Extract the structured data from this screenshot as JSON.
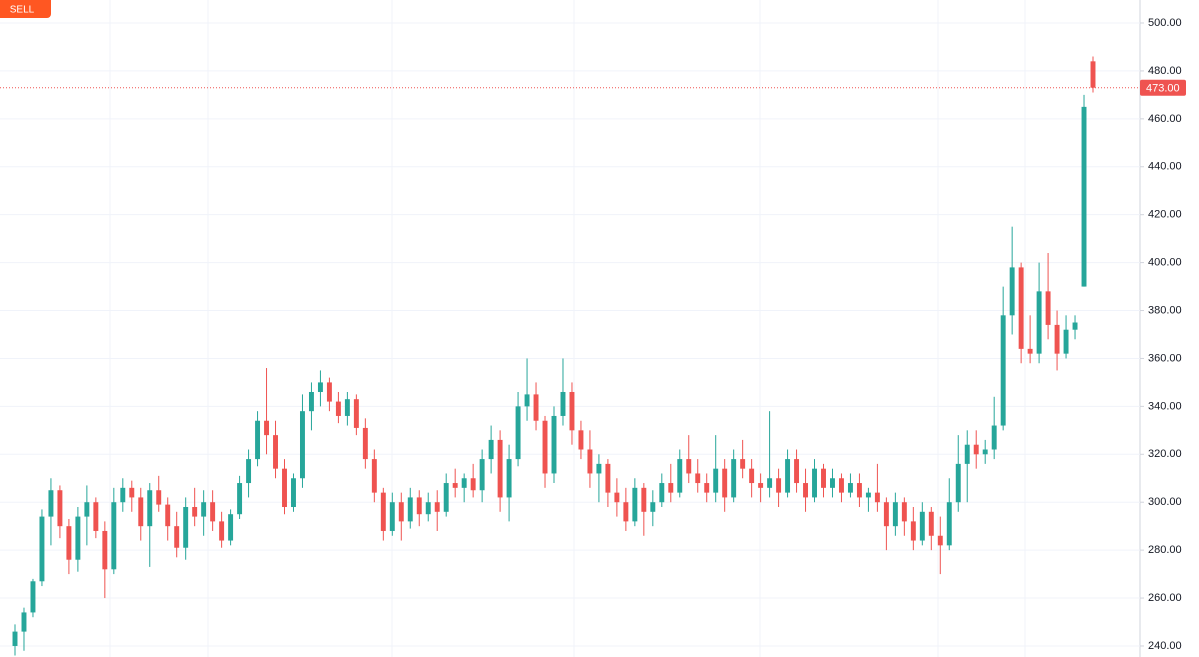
{
  "chart_data": {
    "type": "candlestick",
    "button": "SELL",
    "up_color": "#26a69a",
    "down_color": "#ef5350",
    "ylim": [
      235.4,
      509.6
    ],
    "yticks": [
      {
        "value": 240,
        "label": "240.00"
      },
      {
        "value": 260,
        "label": "260.00"
      },
      {
        "value": 280,
        "label": "280.00"
      },
      {
        "value": 300,
        "label": "300.00"
      },
      {
        "value": 320,
        "label": "320.00"
      },
      {
        "value": 340,
        "label": "340.00"
      },
      {
        "value": 360,
        "label": "360.00"
      },
      {
        "value": 380,
        "label": "380.00"
      },
      {
        "value": 400,
        "label": "400.00"
      },
      {
        "value": 420,
        "label": "420.00"
      },
      {
        "value": 440,
        "label": "440.00"
      },
      {
        "value": 460,
        "label": "460.00"
      },
      {
        "value": 480,
        "label": "480.00"
      },
      {
        "value": 500,
        "label": "500.00"
      }
    ],
    "grid": true,
    "last_price": {
      "value": 473,
      "label": "473.00"
    },
    "open": [
      240,
      246,
      254,
      267,
      294,
      305,
      290,
      276,
      294,
      300,
      288,
      272,
      300,
      306,
      302,
      290,
      305,
      299,
      290,
      281,
      298,
      294,
      300,
      292,
      284,
      295,
      308,
      318,
      334,
      328,
      314,
      298,
      310,
      338,
      346,
      350,
      342,
      336,
      343,
      331,
      318,
      304,
      288,
      300,
      292,
      302,
      295,
      300,
      296,
      308,
      306,
      310,
      305,
      318,
      326,
      302,
      318,
      340,
      345,
      334,
      312,
      336,
      346,
      330,
      322,
      312,
      316,
      304,
      300,
      292,
      306,
      296,
      300,
      308,
      304,
      318,
      312,
      308,
      304,
      314,
      302,
      318,
      314,
      308,
      306,
      310,
      304,
      318,
      308,
      302,
      314,
      306,
      310,
      304,
      308,
      302,
      304,
      300,
      290,
      300,
      292,
      284,
      296,
      286,
      282,
      300,
      316,
      324,
      320,
      322,
      332,
      378,
      398,
      364,
      362,
      388,
      374,
      362,
      372,
      390,
      484
    ],
    "high": [
      249,
      256,
      268,
      297,
      310,
      307,
      293,
      298,
      307,
      302,
      292,
      306,
      310,
      309,
      306,
      308,
      311,
      302,
      296,
      302,
      306,
      305,
      305,
      296,
      297,
      311,
      322,
      338,
      356,
      334,
      318,
      312,
      345,
      350,
      355,
      352,
      346,
      346,
      345,
      335,
      322,
      306,
      304,
      304,
      306,
      305,
      304,
      305,
      312,
      314,
      312,
      316,
      322,
      332,
      330,
      324,
      346,
      360,
      350,
      336,
      340,
      360,
      350,
      334,
      330,
      320,
      318,
      310,
      306,
      310,
      308,
      305,
      312,
      316,
      322,
      328,
      318,
      312,
      328,
      318,
      322,
      326,
      318,
      312,
      338,
      314,
      322,
      322,
      314,
      318,
      316,
      314,
      312,
      312,
      312,
      306,
      316,
      302,
      304,
      302,
      298,
      300,
      298,
      294,
      310,
      328,
      330,
      330,
      326,
      344,
      390,
      415,
      400,
      378,
      400,
      404,
      380,
      378,
      378,
      470,
      486
    ],
    "low": [
      236,
      238,
      252,
      265,
      282,
      285,
      270,
      271,
      282,
      285,
      260,
      270,
      296,
      296,
      284,
      273,
      296,
      284,
      277,
      276,
      290,
      286,
      288,
      281,
      282,
      293,
      302,
      315,
      320,
      310,
      295,
      296,
      306,
      330,
      340,
      338,
      333,
      332,
      328,
      314,
      300,
      284,
      286,
      284,
      289,
      290,
      292,
      288,
      294,
      302,
      300,
      302,
      300,
      312,
      296,
      292,
      315,
      334,
      330,
      306,
      308,
      332,
      324,
      318,
      306,
      300,
      298,
      294,
      288,
      290,
      286,
      290,
      298,
      300,
      302,
      308,
      304,
      300,
      300,
      296,
      300,
      310,
      302,
      300,
      302,
      298,
      302,
      304,
      296,
      300,
      302,
      302,
      300,
      302,
      298,
      296,
      296,
      280,
      286,
      286,
      280,
      282,
      280,
      270,
      280,
      296,
      300,
      314,
      316,
      318,
      330,
      370,
      358,
      358,
      358,
      368,
      355,
      360,
      368,
      390,
      471
    ],
    "close": [
      246,
      254,
      267,
      294,
      305,
      290,
      276,
      294,
      300,
      288,
      272,
      300,
      306,
      302,
      290,
      305,
      299,
      290,
      281,
      298,
      294,
      300,
      292,
      284,
      295,
      308,
      318,
      334,
      328,
      314,
      298,
      310,
      338,
      346,
      350,
      342,
      336,
      343,
      331,
      318,
      304,
      288,
      300,
      292,
      302,
      295,
      300,
      296,
      308,
      306,
      310,
      305,
      318,
      326,
      302,
      318,
      340,
      345,
      334,
      312,
      336,
      346,
      330,
      322,
      312,
      316,
      304,
      300,
      292,
      306,
      296,
      300,
      308,
      304,
      318,
      312,
      308,
      304,
      314,
      302,
      318,
      314,
      308,
      306,
      310,
      304,
      318,
      308,
      302,
      314,
      306,
      310,
      304,
      308,
      302,
      304,
      300,
      290,
      300,
      292,
      284,
      296,
      286,
      282,
      300,
      316,
      324,
      320,
      322,
      332,
      378,
      398,
      364,
      362,
      388,
      374,
      362,
      372,
      375,
      465,
      473
    ]
  }
}
